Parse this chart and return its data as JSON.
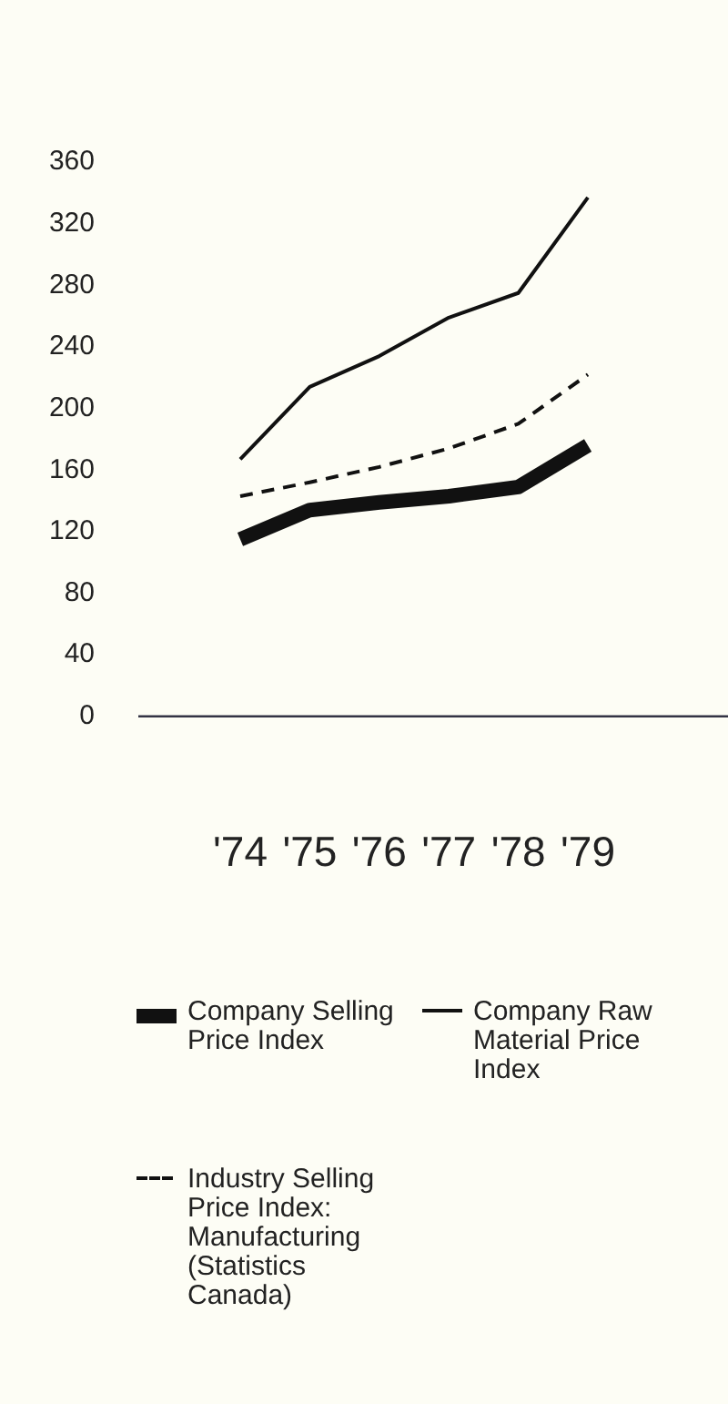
{
  "chart_data": {
    "type": "line",
    "categories": [
      "'74",
      "'75",
      "'76",
      "'77",
      "'78",
      "'79"
    ],
    "series": [
      {
        "name": "Company Selling Price Index",
        "color": "#111111",
        "line_style": "solid",
        "values": [
          115,
          134,
          139,
          143,
          149,
          176
        ]
      },
      {
        "name": "Company Raw Material Price Index",
        "color": "#111111",
        "line_style": "solid",
        "values": [
          167,
          214,
          234,
          259,
          275,
          337
        ]
      },
      {
        "name": "Industry Selling Price Index: Manufacturing (Statistics Canada)",
        "color": "#111111",
        "line_style": "dashed",
        "values": [
          143,
          152,
          162,
          174,
          190,
          222
        ]
      }
    ],
    "ylim": [
      0,
      360
    ],
    "yticks": [
      0,
      40,
      80,
      120,
      160,
      200,
      240,
      280,
      320,
      360
    ],
    "grid": false,
    "legend": "bottom",
    "marker": "none"
  }
}
